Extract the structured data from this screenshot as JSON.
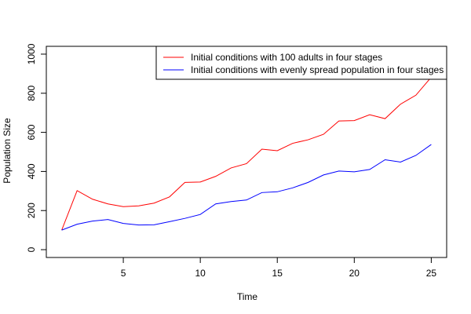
{
  "chart_data": {
    "type": "line",
    "xlabel": "Time",
    "ylabel": "Population Size",
    "xlim": [
      0,
      26
    ],
    "ylim": [
      -40,
      1040
    ],
    "x_ticks": [
      5,
      10,
      15,
      20,
      25
    ],
    "y_ticks": [
      0,
      200,
      400,
      600,
      800,
      1000
    ],
    "grid": false,
    "legend_position": "top-right",
    "x": [
      1,
      2,
      3,
      4,
      5,
      6,
      7,
      8,
      9,
      10,
      11,
      12,
      13,
      14,
      15,
      16,
      17,
      18,
      19,
      20,
      21,
      22,
      23,
      24,
      25
    ],
    "series": [
      {
        "name": "Initial conditions with 100 adults in four stages",
        "color": "#ff0000",
        "values": [
          100,
          302,
          258,
          234,
          220,
          224,
          238,
          270,
          344,
          346,
          375,
          418,
          440,
          514,
          506,
          544,
          562,
          590,
          658,
          660,
          690,
          670,
          744,
          790,
          882
        ]
      },
      {
        "name": "Initial conditions with evenly spread population in four stages",
        "color": "#0000ff",
        "values": [
          100,
          130,
          146,
          154,
          134,
          126,
          127,
          143,
          160,
          180,
          234,
          246,
          254,
          292,
          296,
          316,
          344,
          382,
          402,
          398,
          410,
          460,
          448,
          482,
          538
        ]
      }
    ]
  }
}
